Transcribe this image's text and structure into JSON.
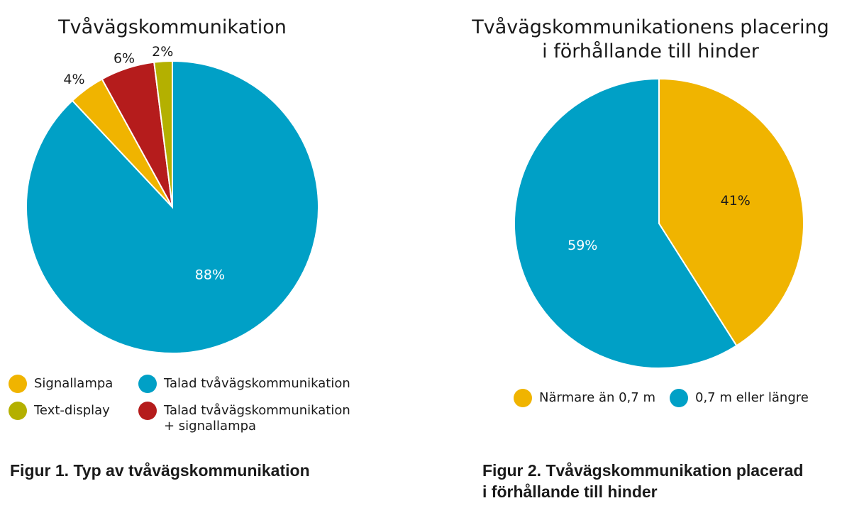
{
  "charts": [
    {
      "type": "pie",
      "title": "Tvåvägskommunikation",
      "title_lines": [
        "Tvåvägskommunikation"
      ],
      "caption": "Figur 1. Typ av tvåvägskommunikation",
      "slices": [
        {
          "name": "Talad tvåvägskommunikation",
          "value": 88,
          "label": "88%",
          "color": "#00a0c6"
        },
        {
          "name": "Signallampa",
          "value": 4,
          "label": "4%",
          "color": "#f0b400"
        },
        {
          "name": "Talad tvåvägskommunikation + signallampa",
          "value": 6,
          "label": "6%",
          "color": "#b51c1c"
        },
        {
          "name": "Text-display",
          "value": 2,
          "label": "2%",
          "color": "#b4b000"
        }
      ],
      "legend": [
        {
          "text": "Signallampa",
          "sub": "",
          "color": "#f0b400"
        },
        {
          "text": "Talad tvåvägskommunikation",
          "sub": "",
          "color": "#00a0c6"
        },
        {
          "text": "Text-display",
          "sub": "",
          "color": "#b4b000"
        },
        {
          "text": "Talad tvåvägskommunikation",
          "sub": "+ signallampa",
          "color": "#b51c1c"
        }
      ]
    },
    {
      "type": "pie",
      "title": "Tvåvägskommunikationens placering i förhållande till hinder",
      "title_lines": [
        "Tvåvägskommunikationens placering",
        "i förhållande till hinder"
      ],
      "caption_lines": [
        "Figur 2. Tvåvägskommunikation placerad",
        "i förhållande till hinder"
      ],
      "slices": [
        {
          "name": "Närmare än 0,7 m",
          "value": 41,
          "label": "41%",
          "color": "#f0b400"
        },
        {
          "name": "0,7 m eller längre",
          "value": 59,
          "label": "59%",
          "color": "#00a0c6"
        }
      ],
      "legend": [
        {
          "text": "Närmare än 0,7 m",
          "color": "#f0b400"
        },
        {
          "text": "0,7 m eller längre",
          "color": "#00a0c6"
        }
      ]
    }
  ]
}
